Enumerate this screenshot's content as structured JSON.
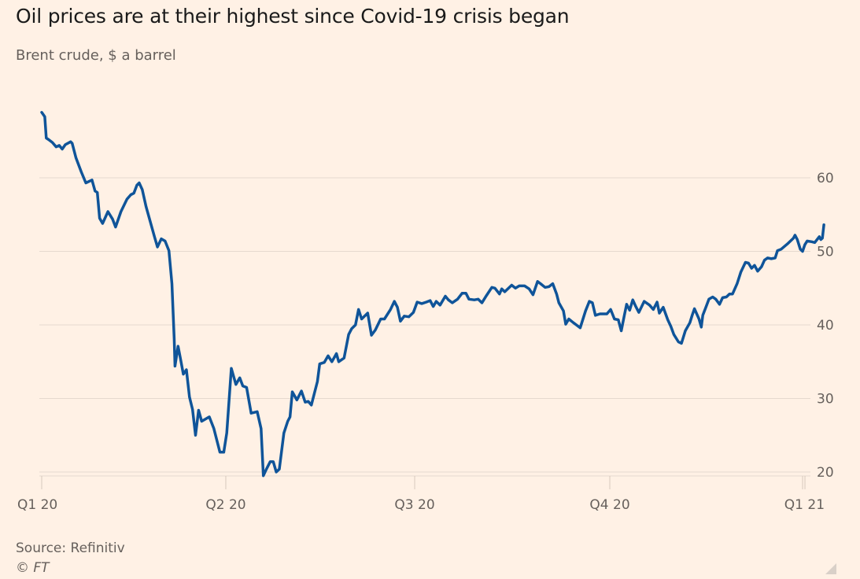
{
  "header": {
    "title": "Oil prices are at their highest since Covid-19 crisis began",
    "subtitle": "Brent crude, $ a barrel"
  },
  "footer": {
    "source": "Source: Refinitiv",
    "copyright": "© FT"
  },
  "colors": {
    "background": "#fff1e5",
    "line": "#0f5499",
    "grid": "#e6d9ce",
    "text": "#66605c"
  },
  "chart_data": {
    "type": "line",
    "title": "Oil prices are at their highest since Covid-19 crisis began",
    "subtitle": "Brent crude, $ a barrel",
    "xlabel": "",
    "ylabel": "Brent crude, $ a barrel",
    "xlim": [
      0,
      1
    ],
    "ylim": [
      19,
      69
    ],
    "yticks": [
      20,
      30,
      40,
      50,
      60
    ],
    "xticks": [
      {
        "label": "Q1 20",
        "pos": 0.0
      },
      {
        "label": "Q2 20",
        "pos": 0.2417
      },
      {
        "label": "Q3 20",
        "pos": 0.4897
      },
      {
        "label": "Q4 20",
        "pos": 0.7459
      },
      {
        "label": "Q1 21",
        "pos": 0.999
      }
    ],
    "grid": true,
    "y_axis_side": "right",
    "series": [
      {
        "name": "Brent crude",
        "x_unit": "fraction of period Q1 20 to Q1 21",
        "points": [
          [
            0.0,
            68.9
          ],
          [
            0.004,
            68.3
          ],
          [
            0.006,
            65.4
          ],
          [
            0.009,
            65.2
          ],
          [
            0.014,
            64.8
          ],
          [
            0.019,
            64.2
          ],
          [
            0.023,
            64.4
          ],
          [
            0.027,
            63.9
          ],
          [
            0.031,
            64.5
          ],
          [
            0.038,
            64.9
          ],
          [
            0.04,
            64.7
          ],
          [
            0.045,
            62.7
          ],
          [
            0.052,
            60.8
          ],
          [
            0.058,
            59.3
          ],
          [
            0.066,
            59.7
          ],
          [
            0.07,
            58.2
          ],
          [
            0.073,
            58.0
          ],
          [
            0.076,
            54.5
          ],
          [
            0.08,
            53.8
          ],
          [
            0.087,
            55.4
          ],
          [
            0.093,
            54.4
          ],
          [
            0.097,
            53.3
          ],
          [
            0.104,
            55.4
          ],
          [
            0.112,
            57.1
          ],
          [
            0.117,
            57.7
          ],
          [
            0.121,
            57.9
          ],
          [
            0.125,
            59.0
          ],
          [
            0.128,
            59.3
          ],
          [
            0.132,
            58.4
          ],
          [
            0.137,
            56.1
          ],
          [
            0.148,
            52.0
          ],
          [
            0.152,
            50.6
          ],
          [
            0.157,
            51.7
          ],
          [
            0.162,
            51.4
          ],
          [
            0.167,
            50.1
          ],
          [
            0.171,
            45.6
          ],
          [
            0.174,
            38.1
          ],
          [
            0.175,
            34.4
          ],
          [
            0.179,
            37.1
          ],
          [
            0.182,
            35.5
          ],
          [
            0.186,
            33.3
          ],
          [
            0.19,
            33.9
          ],
          [
            0.194,
            30.2
          ],
          [
            0.198,
            28.5
          ],
          [
            0.202,
            25.0
          ],
          [
            0.206,
            28.4
          ],
          [
            0.21,
            26.9
          ],
          [
            0.22,
            27.5
          ],
          [
            0.226,
            25.9
          ],
          [
            0.234,
            22.7
          ],
          [
            0.239,
            22.7
          ],
          [
            0.243,
            25.3
          ],
          [
            0.249,
            34.1
          ],
          [
            0.255,
            31.9
          ],
          [
            0.26,
            32.8
          ],
          [
            0.264,
            31.7
          ],
          [
            0.269,
            31.5
          ],
          [
            0.275,
            28.0
          ],
          [
            0.283,
            28.2
          ],
          [
            0.288,
            25.9
          ],
          [
            0.291,
            19.5
          ],
          [
            0.295,
            20.4
          ],
          [
            0.3,
            21.4
          ],
          [
            0.304,
            21.4
          ],
          [
            0.308,
            20.0
          ],
          [
            0.312,
            20.4
          ],
          [
            0.318,
            25.3
          ],
          [
            0.323,
            26.9
          ],
          [
            0.326,
            27.5
          ],
          [
            0.329,
            30.9
          ],
          [
            0.335,
            29.8
          ],
          [
            0.341,
            31.0
          ],
          [
            0.346,
            29.5
          ],
          [
            0.35,
            29.6
          ],
          [
            0.354,
            29.1
          ],
          [
            0.362,
            32.3
          ],
          [
            0.365,
            34.7
          ],
          [
            0.371,
            34.9
          ],
          [
            0.376,
            35.8
          ],
          [
            0.381,
            35.0
          ],
          [
            0.387,
            36.1
          ],
          [
            0.39,
            35.0
          ],
          [
            0.397,
            35.5
          ],
          [
            0.403,
            38.7
          ],
          [
            0.407,
            39.5
          ],
          [
            0.412,
            40.0
          ],
          [
            0.416,
            42.1
          ],
          [
            0.42,
            40.8
          ],
          [
            0.428,
            41.6
          ],
          [
            0.433,
            38.6
          ],
          [
            0.438,
            39.3
          ],
          [
            0.445,
            40.8
          ],
          [
            0.45,
            40.8
          ],
          [
            0.458,
            42.1
          ],
          [
            0.463,
            43.2
          ],
          [
            0.467,
            42.4
          ],
          [
            0.471,
            40.5
          ],
          [
            0.476,
            41.2
          ],
          [
            0.482,
            41.1
          ],
          [
            0.488,
            41.7
          ],
          [
            0.493,
            43.1
          ],
          [
            0.499,
            42.9
          ],
          [
            0.505,
            43.1
          ],
          [
            0.51,
            43.3
          ],
          [
            0.514,
            42.5
          ],
          [
            0.518,
            43.2
          ],
          [
            0.523,
            42.7
          ],
          [
            0.53,
            43.9
          ],
          [
            0.534,
            43.4
          ],
          [
            0.539,
            43.0
          ],
          [
            0.546,
            43.5
          ],
          [
            0.552,
            44.3
          ],
          [
            0.557,
            44.3
          ],
          [
            0.561,
            43.5
          ],
          [
            0.568,
            43.4
          ],
          [
            0.573,
            43.5
          ],
          [
            0.577,
            43.1
          ],
          [
            0.578,
            43.0
          ],
          [
            0.584,
            44.0
          ],
          [
            0.591,
            45.1
          ],
          [
            0.595,
            45.0
          ],
          [
            0.601,
            44.2
          ],
          [
            0.604,
            44.9
          ],
          [
            0.608,
            44.5
          ],
          [
            0.617,
            45.4
          ],
          [
            0.622,
            45.0
          ],
          [
            0.627,
            45.3
          ],
          [
            0.634,
            45.3
          ],
          [
            0.64,
            44.9
          ],
          [
            0.645,
            44.1
          ],
          [
            0.651,
            45.9
          ],
          [
            0.655,
            45.6
          ],
          [
            0.661,
            45.1
          ],
          [
            0.666,
            45.2
          ],
          [
            0.671,
            45.6
          ],
          [
            0.676,
            44.2
          ],
          [
            0.679,
            43.0
          ],
          [
            0.685,
            41.9
          ],
          [
            0.688,
            40.1
          ],
          [
            0.692,
            40.8
          ],
          [
            0.698,
            40.3
          ],
          [
            0.702,
            40.0
          ],
          [
            0.707,
            39.6
          ],
          [
            0.714,
            41.9
          ],
          [
            0.719,
            43.2
          ],
          [
            0.723,
            43.0
          ],
          [
            0.727,
            41.3
          ],
          [
            0.733,
            41.5
          ],
          [
            0.742,
            41.5
          ],
          [
            0.747,
            42.1
          ],
          [
            0.752,
            40.8
          ],
          [
            0.757,
            40.7
          ],
          [
            0.761,
            39.2
          ],
          [
            0.765,
            41.3
          ],
          [
            0.768,
            42.8
          ],
          [
            0.772,
            42.0
          ],
          [
            0.776,
            43.4
          ],
          [
            0.78,
            42.5
          ],
          [
            0.784,
            41.7
          ],
          [
            0.791,
            43.2
          ],
          [
            0.798,
            42.7
          ],
          [
            0.803,
            42.1
          ],
          [
            0.808,
            43.1
          ],
          [
            0.811,
            41.6
          ],
          [
            0.816,
            42.4
          ],
          [
            0.822,
            40.7
          ],
          [
            0.826,
            39.8
          ],
          [
            0.83,
            38.7
          ],
          [
            0.836,
            37.7
          ],
          [
            0.84,
            37.5
          ],
          [
            0.845,
            39.2
          ],
          [
            0.851,
            40.3
          ],
          [
            0.854,
            41.3
          ],
          [
            0.857,
            42.2
          ],
          [
            0.863,
            40.8
          ],
          [
            0.866,
            39.7
          ],
          [
            0.868,
            41.3
          ],
          [
            0.872,
            42.4
          ],
          [
            0.876,
            43.5
          ],
          [
            0.881,
            43.8
          ],
          [
            0.885,
            43.5
          ],
          [
            0.89,
            42.8
          ],
          [
            0.894,
            43.7
          ],
          [
            0.899,
            43.8
          ],
          [
            0.903,
            44.2
          ],
          [
            0.907,
            44.2
          ],
          [
            0.913,
            45.6
          ],
          [
            0.918,
            47.2
          ],
          [
            0.924,
            48.5
          ],
          [
            0.928,
            48.4
          ],
          [
            0.932,
            47.7
          ],
          [
            0.936,
            48.1
          ],
          [
            0.94,
            47.3
          ],
          [
            0.945,
            47.9
          ],
          [
            0.949,
            48.8
          ],
          [
            0.953,
            49.1
          ],
          [
            0.958,
            49.0
          ],
          [
            0.963,
            49.1
          ],
          [
            0.966,
            50.1
          ],
          [
            0.971,
            50.3
          ],
          [
            0.979,
            51.0
          ],
          [
            0.987,
            51.8
          ],
          [
            0.989,
            52.2
          ],
          [
            0.992,
            51.6
          ],
          [
            0.996,
            50.3
          ],
          [
            0.999,
            50.0
          ],
          [
            1.002,
            50.9
          ],
          [
            1.005,
            51.4
          ],
          [
            1.011,
            51.3
          ],
          [
            1.015,
            51.2
          ],
          [
            1.021,
            52.0
          ],
          [
            1.023,
            51.6
          ],
          [
            1.025,
            51.8
          ],
          [
            1.027,
            53.6
          ]
        ]
      }
    ]
  }
}
